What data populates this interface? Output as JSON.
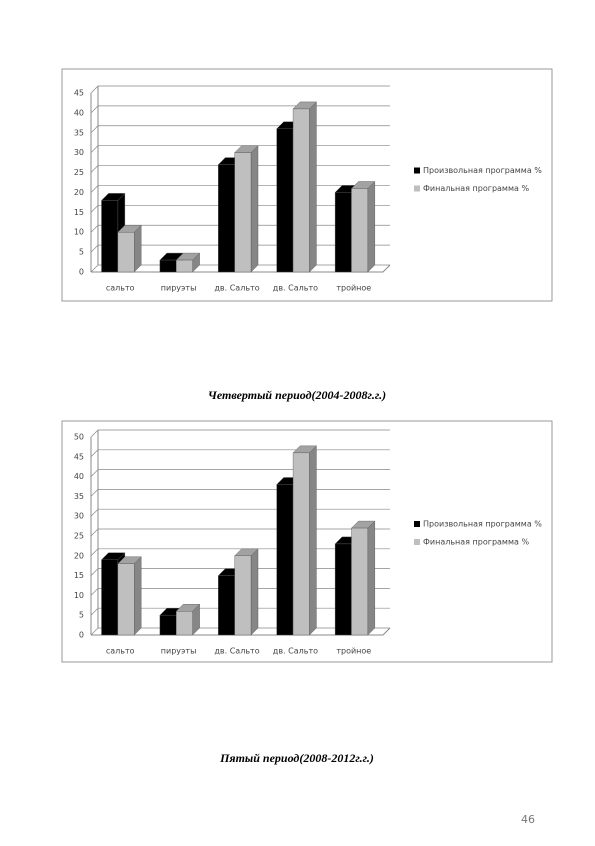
{
  "chart_data": [
    {
      "type": "bar3d",
      "categories": [
        "сальто",
        "пируэты",
        "дв. Сальто",
        "дв. Сальто",
        "тройное"
      ],
      "series": [
        {
          "name": "Произвольная программа %",
          "color": "#000000",
          "values": [
            18,
            3,
            27,
            36,
            20
          ]
        },
        {
          "name": "Финальная программа %",
          "color": "#bfbfbf",
          "values": [
            10,
            3,
            30,
            41,
            21
          ]
        }
      ],
      "ylim": [
        0,
        45
      ],
      "yticks": [
        0,
        5,
        10,
        15,
        20,
        25,
        30,
        35,
        40,
        45
      ],
      "grid": true,
      "legend": "right"
    },
    {
      "type": "bar3d",
      "categories": [
        "сальто",
        "пируэты",
        "дв. Сальто",
        "дв. Сальто",
        "тройное"
      ],
      "series": [
        {
          "name": "Произвольная программа %",
          "color": "#000000",
          "values": [
            19,
            5,
            15,
            38,
            23
          ]
        },
        {
          "name": "Финальная программа %",
          "color": "#bfbfbf",
          "values": [
            18,
            6,
            20,
            46,
            27
          ]
        }
      ],
      "ylim": [
        0,
        50
      ],
      "yticks": [
        0,
        5,
        10,
        15,
        20,
        25,
        30,
        35,
        40,
        45,
        50
      ],
      "grid": true,
      "legend": "right"
    }
  ],
  "captions": [
    "Четвертый период(2004-2008г.г.)",
    "Пятый период(2008-2012г.г.)"
  ],
  "page_number": "46"
}
